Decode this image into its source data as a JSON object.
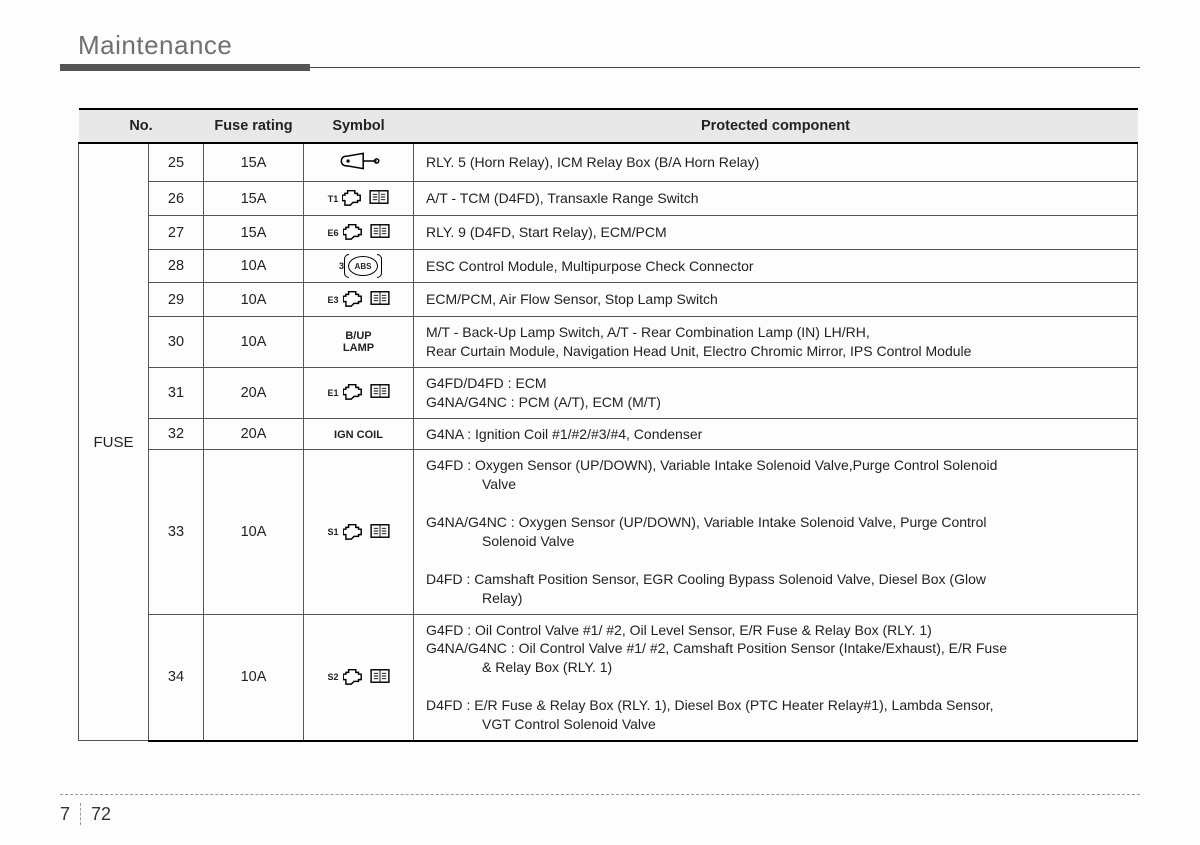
{
  "page": {
    "title": "Maintenance",
    "chapter": "7",
    "pagenum": "72"
  },
  "table": {
    "headers": {
      "no": "No.",
      "rating": "Fuse rating",
      "symbol": "Symbol",
      "component": "Protected component"
    },
    "group_label": "FUSE",
    "rows": [
      {
        "no": "25",
        "rating": "15A",
        "sym_type": "horn",
        "sym_sup": "",
        "sym_text": "",
        "desc": "RLY. 5 (Horn Relay), ICM Relay Box (B/A Horn Relay)"
      },
      {
        "no": "26",
        "rating": "15A",
        "sym_type": "engine",
        "sym_sup": "T1",
        "sym_text": "",
        "desc": "A/T - TCM (D4FD), Transaxle Range Switch"
      },
      {
        "no": "27",
        "rating": "15A",
        "sym_type": "engine",
        "sym_sup": "E6",
        "sym_text": "",
        "desc": "RLY. 9 (D4FD, Start Relay), ECM/PCM"
      },
      {
        "no": "28",
        "rating": "10A",
        "sym_type": "abs",
        "sym_sup": "3",
        "sym_text": "ABS",
        "desc": "ESC Control Module, Multipurpose Check Connector"
      },
      {
        "no": "29",
        "rating": "10A",
        "sym_type": "engine",
        "sym_sup": "E3",
        "sym_text": "",
        "desc": "ECM/PCM, Air Flow Sensor, Stop Lamp Switch"
      },
      {
        "no": "30",
        "rating": "10A",
        "sym_type": "text",
        "sym_sup": "",
        "sym_text": "B/UP\nLAMP",
        "desc": "M/T - Back-Up Lamp Switch, A/T - Rear Combination Lamp (IN) LH/RH,\nRear Curtain Module, Navigation Head Unit, Electro Chromic Mirror, IPS Control Module"
      },
      {
        "no": "31",
        "rating": "20A",
        "sym_type": "engine",
        "sym_sup": "E1",
        "sym_text": "",
        "desc": "G4FD/D4FD : ECM\nG4NA/G4NC : PCM (A/T), ECM (M/T)"
      },
      {
        "no": "32",
        "rating": "20A",
        "sym_type": "text",
        "sym_sup": "",
        "sym_text": "IGN COIL",
        "desc": "G4NA : Ignition Coil #1/#2/#3/#4, Condenser"
      },
      {
        "no": "33",
        "rating": "10A",
        "sym_type": "engine",
        "sym_sup": "S1",
        "sym_text": "",
        "desc": "G4FD : Oxygen Sensor (UP/DOWN), Variable Intake Solenoid Valve,Purge Control Solenoid\n\tValve\nG4NA/G4NC : Oxygen Sensor (UP/DOWN), Variable Intake Solenoid Valve, Purge Control\n\tSolenoid Valve\nD4FD : Camshaft Position Sensor, EGR Cooling Bypass Solenoid Valve, Diesel Box (Glow\n\tRelay)"
      },
      {
        "no": "34",
        "rating": "10A",
        "sym_type": "engine",
        "sym_sup": "S2",
        "sym_text": "",
        "desc": "G4FD : Oil Control Valve #1/ #2, Oil Level Sensor, E/R Fuse & Relay Box (RLY. 1)\nG4NA/G4NC : Oil Control Valve #1/ #2, Camshaft Position Sensor (Intake/Exhaust), E/R Fuse\n\t& Relay Box (RLY. 1)\nD4FD : E/R Fuse & Relay Box (RLY. 1), Diesel Box (PTC Heater Relay#1), Lambda Sensor,\n\tVGT Control Solenoid Valve"
      }
    ]
  }
}
